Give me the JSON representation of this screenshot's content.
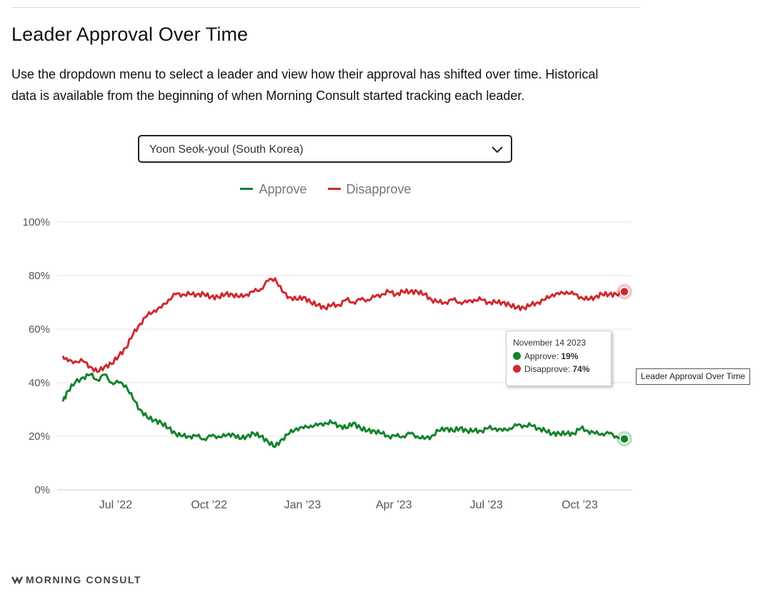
{
  "page": {
    "title": "Leader Approval Over Time",
    "description": "Use the dropdown menu to select a leader and view how their approval has shifted over time. Historical data is available from the beginning of when Morning Consult started tracking each leader."
  },
  "dropdown": {
    "selected": "Yoon Seok-youl (South Korea)"
  },
  "tooltip": {
    "date": "November 14 2023",
    "approve_label": "Approve:",
    "approve_value": "19%",
    "disapprove_label": "Disapprove:",
    "disapprove_value": "74%"
  },
  "side_label": "Leader Approval Over Time",
  "brand": {
    "name": "MORNING CONSULT"
  },
  "colors": {
    "approve": "#13832a",
    "disapprove": "#d0282f",
    "grid": "#e6e6e6",
    "axis_text": "#555555"
  },
  "chart_data": {
    "type": "line",
    "title": "Leader Approval Over Time",
    "x_start": "2022-05-10",
    "x_end": "2023-11-14",
    "x_ticks": [
      {
        "label": "Jul ’22",
        "date": "2022-07-01"
      },
      {
        "label": "Oct ’22",
        "date": "2022-10-01"
      },
      {
        "label": "Jan ’23",
        "date": "2023-01-01"
      },
      {
        "label": "Apr ’23",
        "date": "2023-04-01"
      },
      {
        "label": "Jul ’23",
        "date": "2023-07-01"
      },
      {
        "label": "Oct ’23",
        "date": "2023-10-01"
      }
    ],
    "y_ticks": [
      "0%",
      "20%",
      "40%",
      "60%",
      "80%",
      "100%"
    ],
    "ylim": [
      0,
      100
    ],
    "legend": [
      "Approve",
      "Disapprove"
    ],
    "series": [
      {
        "name": "Approve",
        "color": "#13832a",
        "points": [
          [
            "2022-05-10",
            33
          ],
          [
            "2022-05-15",
            37
          ],
          [
            "2022-05-22",
            40
          ],
          [
            "2022-05-30",
            42
          ],
          [
            "2022-06-06",
            43
          ],
          [
            "2022-06-13",
            41
          ],
          [
            "2022-06-20",
            43
          ],
          [
            "2022-06-27",
            40
          ],
          [
            "2022-07-04",
            40
          ],
          [
            "2022-07-11",
            39
          ],
          [
            "2022-07-18",
            34
          ],
          [
            "2022-07-25",
            30
          ],
          [
            "2022-08-01",
            27
          ],
          [
            "2022-08-08",
            26
          ],
          [
            "2022-08-15",
            25
          ],
          [
            "2022-08-22",
            23
          ],
          [
            "2022-08-29",
            21
          ],
          [
            "2022-09-05",
            20
          ],
          [
            "2022-09-12",
            20
          ],
          [
            "2022-09-19",
            20
          ],
          [
            "2022-09-26",
            19
          ],
          [
            "2022-10-03",
            20
          ],
          [
            "2022-10-10",
            20
          ],
          [
            "2022-10-17",
            20
          ],
          [
            "2022-10-24",
            21
          ],
          [
            "2022-10-31",
            19
          ],
          [
            "2022-11-07",
            20
          ],
          [
            "2022-11-14",
            21
          ],
          [
            "2022-11-21",
            20
          ],
          [
            "2022-11-28",
            18
          ],
          [
            "2022-12-05",
            16
          ],
          [
            "2022-12-12",
            19
          ],
          [
            "2022-12-19",
            21
          ],
          [
            "2022-12-26",
            23
          ],
          [
            "2023-01-02",
            23
          ],
          [
            "2023-01-09",
            24
          ],
          [
            "2023-01-16",
            24
          ],
          [
            "2023-01-23",
            25
          ],
          [
            "2023-01-30",
            25
          ],
          [
            "2023-02-06",
            24
          ],
          [
            "2023-02-13",
            23
          ],
          [
            "2023-02-20",
            25
          ],
          [
            "2023-02-27",
            23
          ],
          [
            "2023-03-06",
            22
          ],
          [
            "2023-03-13",
            22
          ],
          [
            "2023-03-20",
            21
          ],
          [
            "2023-03-27",
            20
          ],
          [
            "2023-04-03",
            20
          ],
          [
            "2023-04-10",
            20
          ],
          [
            "2023-04-17",
            21
          ],
          [
            "2023-04-24",
            20
          ],
          [
            "2023-05-01",
            19
          ],
          [
            "2023-05-08",
            20
          ],
          [
            "2023-05-15",
            22
          ],
          [
            "2023-05-22",
            23
          ],
          [
            "2023-05-29",
            22
          ],
          [
            "2023-06-05",
            23
          ],
          [
            "2023-06-12",
            22
          ],
          [
            "2023-06-19",
            22
          ],
          [
            "2023-06-26",
            22
          ],
          [
            "2023-07-03",
            23
          ],
          [
            "2023-07-10",
            23
          ],
          [
            "2023-07-17",
            22
          ],
          [
            "2023-07-24",
            23
          ],
          [
            "2023-07-31",
            24
          ],
          [
            "2023-08-07",
            24
          ],
          [
            "2023-08-14",
            24
          ],
          [
            "2023-08-21",
            23
          ],
          [
            "2023-08-28",
            22
          ],
          [
            "2023-09-04",
            21
          ],
          [
            "2023-09-11",
            21
          ],
          [
            "2023-09-18",
            21
          ],
          [
            "2023-09-25",
            21
          ],
          [
            "2023-10-02",
            23
          ],
          [
            "2023-10-09",
            22
          ],
          [
            "2023-10-16",
            21
          ],
          [
            "2023-10-23",
            21
          ],
          [
            "2023-10-30",
            21
          ],
          [
            "2023-11-06",
            20
          ],
          [
            "2023-11-14",
            19
          ]
        ]
      },
      {
        "name": "Disapprove",
        "color": "#d0282f",
        "points": [
          [
            "2022-05-10",
            50
          ],
          [
            "2022-05-15",
            48
          ],
          [
            "2022-05-22",
            48
          ],
          [
            "2022-05-30",
            48
          ],
          [
            "2022-06-06",
            46
          ],
          [
            "2022-06-13",
            44
          ],
          [
            "2022-06-20",
            46
          ],
          [
            "2022-06-27",
            47
          ],
          [
            "2022-07-04",
            50
          ],
          [
            "2022-07-11",
            53
          ],
          [
            "2022-07-18",
            58
          ],
          [
            "2022-07-25",
            62
          ],
          [
            "2022-08-01",
            65
          ],
          [
            "2022-08-08",
            67
          ],
          [
            "2022-08-15",
            68
          ],
          [
            "2022-08-22",
            71
          ],
          [
            "2022-08-29",
            73
          ],
          [
            "2022-09-05",
            73
          ],
          [
            "2022-09-12",
            73
          ],
          [
            "2022-09-19",
            73
          ],
          [
            "2022-09-26",
            73
          ],
          [
            "2022-10-03",
            72
          ],
          [
            "2022-10-10",
            72
          ],
          [
            "2022-10-17",
            73
          ],
          [
            "2022-10-24",
            73
          ],
          [
            "2022-10-31",
            72
          ],
          [
            "2022-11-07",
            73
          ],
          [
            "2022-11-14",
            74
          ],
          [
            "2022-11-21",
            75
          ],
          [
            "2022-11-28",
            78
          ],
          [
            "2022-12-05",
            79
          ],
          [
            "2022-12-12",
            74
          ],
          [
            "2022-12-19",
            72
          ],
          [
            "2022-12-26",
            71
          ],
          [
            "2023-01-02",
            72
          ],
          [
            "2023-01-09",
            70
          ],
          [
            "2023-01-16",
            69
          ],
          [
            "2023-01-23",
            68
          ],
          [
            "2023-01-30",
            69
          ],
          [
            "2023-02-06",
            69
          ],
          [
            "2023-02-13",
            71
          ],
          [
            "2023-02-20",
            70
          ],
          [
            "2023-02-27",
            71
          ],
          [
            "2023-03-06",
            71
          ],
          [
            "2023-03-13",
            72
          ],
          [
            "2023-03-20",
            73
          ],
          [
            "2023-03-27",
            74
          ],
          [
            "2023-04-03",
            73
          ],
          [
            "2023-04-10",
            74
          ],
          [
            "2023-04-17",
            74
          ],
          [
            "2023-04-24",
            74
          ],
          [
            "2023-05-01",
            73
          ],
          [
            "2023-05-08",
            71
          ],
          [
            "2023-05-15",
            70
          ],
          [
            "2023-05-22",
            70
          ],
          [
            "2023-05-29",
            71
          ],
          [
            "2023-06-05",
            70
          ],
          [
            "2023-06-12",
            70
          ],
          [
            "2023-06-19",
            71
          ],
          [
            "2023-06-26",
            71
          ],
          [
            "2023-07-03",
            70
          ],
          [
            "2023-07-10",
            70
          ],
          [
            "2023-07-17",
            70
          ],
          [
            "2023-07-24",
            69
          ],
          [
            "2023-07-31",
            68
          ],
          [
            "2023-08-07",
            68
          ],
          [
            "2023-08-14",
            69
          ],
          [
            "2023-08-21",
            70
          ],
          [
            "2023-08-28",
            71
          ],
          [
            "2023-09-04",
            73
          ],
          [
            "2023-09-11",
            73
          ],
          [
            "2023-09-18",
            74
          ],
          [
            "2023-09-25",
            73
          ],
          [
            "2023-10-02",
            72
          ],
          [
            "2023-10-09",
            71
          ],
          [
            "2023-10-16",
            72
          ],
          [
            "2023-10-23",
            73
          ],
          [
            "2023-10-30",
            73
          ],
          [
            "2023-11-06",
            73
          ],
          [
            "2023-11-14",
            74
          ]
        ]
      }
    ]
  }
}
